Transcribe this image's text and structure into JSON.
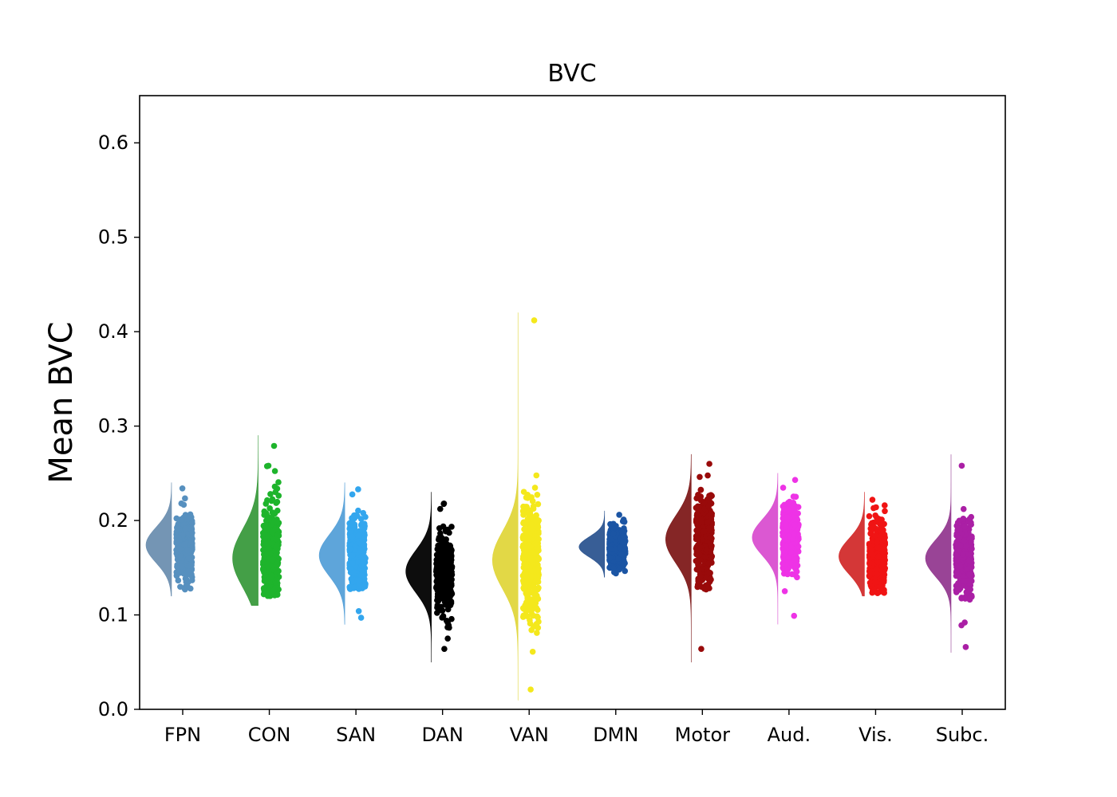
{
  "chart_data": {
    "type": "scatter",
    "variant": "raincloud (half-violin density + jittered strip)",
    "title": "BVC",
    "xlabel": "",
    "ylabel": "Mean BVC",
    "ylim": [
      0.0,
      0.65
    ],
    "yticks": [
      0.0,
      0.1,
      0.2,
      0.3,
      0.4,
      0.5,
      0.6
    ],
    "ytick_labels": [
      "0.0",
      "0.1",
      "0.2",
      "0.3",
      "0.4",
      "0.5",
      "0.6"
    ],
    "grid": false,
    "legend": "none",
    "categories": [
      "FPN",
      "CON",
      "SAN",
      "DAN",
      "VAN",
      "DMN",
      "Motor",
      "Aud.",
      "Vis.",
      "Subc."
    ],
    "series": [
      {
        "category": "FPN",
        "color": "#5790bf",
        "violin_color": "#6d8fb0",
        "center": 0.174,
        "range": [
          0.127,
          0.234
        ],
        "violin_extent": [
          0.12,
          0.24
        ],
        "outliers": [
          0.127,
          0.13,
          0.234
        ]
      },
      {
        "category": "CON",
        "color": "#1eb42c",
        "violin_color": "#3a9a3d",
        "center": 0.16,
        "range": [
          0.12,
          0.258
        ],
        "violin_extent": [
          0.11,
          0.29
        ],
        "outliers": [
          0.279,
          0.258,
          0.228
        ]
      },
      {
        "category": "SAN",
        "color": "#33a6ee",
        "violin_color": "#55a0d8",
        "center": 0.163,
        "range": [
          0.127,
          0.233
        ],
        "violin_extent": [
          0.09,
          0.24
        ],
        "outliers": [
          0.104,
          0.097,
          0.233
        ]
      },
      {
        "category": "DAN",
        "color": "#000000",
        "violin_color": "#000000",
        "center": 0.146,
        "range": [
          0.085,
          0.218
        ],
        "violin_extent": [
          0.05,
          0.23
        ],
        "outliers": [
          0.064,
          0.075,
          0.218,
          0.089
        ]
      },
      {
        "category": "VAN",
        "color": "#f4e81c",
        "violin_color": "#e0d63c",
        "center": 0.158,
        "range": [
          0.07,
          0.255
        ],
        "violin_extent": [
          0.01,
          0.42
        ],
        "outliers": [
          0.412,
          0.021,
          0.061
        ]
      },
      {
        "category": "DMN",
        "color": "#1b55a4",
        "violin_color": "#2d5590",
        "center": 0.172,
        "range": [
          0.143,
          0.206
        ],
        "violin_extent": [
          0.14,
          0.21
        ],
        "outliers": [
          0.206
        ]
      },
      {
        "category": "Motor",
        "color": "#990a0a",
        "violin_color": "#7e1a1a",
        "center": 0.18,
        "range": [
          0.125,
          0.26
        ],
        "violin_extent": [
          0.05,
          0.27
        ],
        "outliers": [
          0.064,
          0.26
        ]
      },
      {
        "category": "Aud.",
        "color": "#ee33e6",
        "violin_color": "#d94fd0",
        "center": 0.182,
        "range": [
          0.124,
          0.243
        ],
        "violin_extent": [
          0.09,
          0.25
        ],
        "outliers": [
          0.099,
          0.243
        ]
      },
      {
        "category": "Vis.",
        "color": "#f01414",
        "violin_color": "#d22c2c",
        "center": 0.162,
        "range": [
          0.122,
          0.222
        ],
        "violin_extent": [
          0.12,
          0.23
        ],
        "outliers": [
          0.222,
          0.214
        ]
      },
      {
        "category": "Subc.",
        "color": "#aa1fa5",
        "violin_color": "#933a90",
        "center": 0.16,
        "range": [
          0.114,
          0.222
        ],
        "violin_extent": [
          0.06,
          0.27
        ],
        "outliers": [
          0.258,
          0.066,
          0.089,
          0.092
        ]
      }
    ]
  }
}
